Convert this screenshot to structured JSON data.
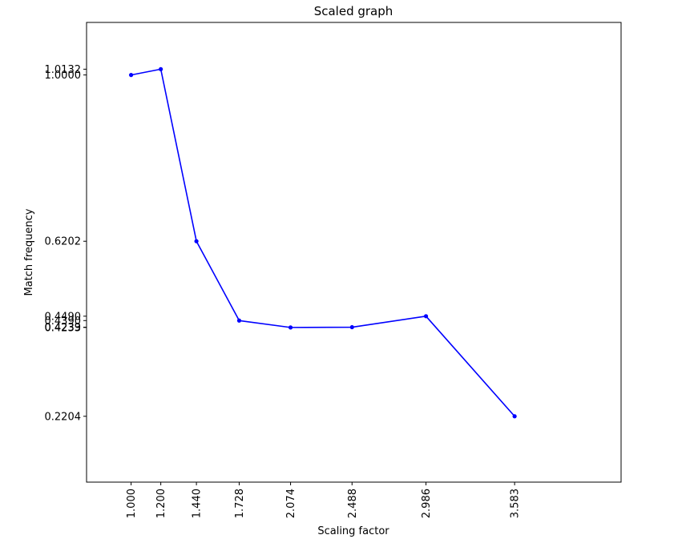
{
  "chart_data": {
    "type": "line",
    "title": "Scaled graph",
    "xlabel": "Scaling factor",
    "ylabel": "Match frequency",
    "xlim": [
      0.7,
      4.3
    ],
    "ylim": [
      0.07,
      1.12
    ],
    "xticks": [
      "1.000",
      "1.200",
      "1.440",
      "1.728",
      "2.074",
      "2.488",
      "2.986",
      "3.583"
    ],
    "yticks": [
      "1.0132",
      "1.0000",
      "0.6202",
      "0.4490",
      "0.4390",
      "0.4239",
      "0.4233",
      "0.2204"
    ],
    "grid": false,
    "series": [
      {
        "color": "#0000ff",
        "x": [
          1.0,
          1.2,
          1.44,
          1.728,
          2.074,
          2.488,
          2.986,
          3.583
        ],
        "y": [
          1.0,
          1.0132,
          0.6202,
          0.439,
          0.4233,
          0.4239,
          0.449,
          0.2204
        ]
      }
    ]
  }
}
